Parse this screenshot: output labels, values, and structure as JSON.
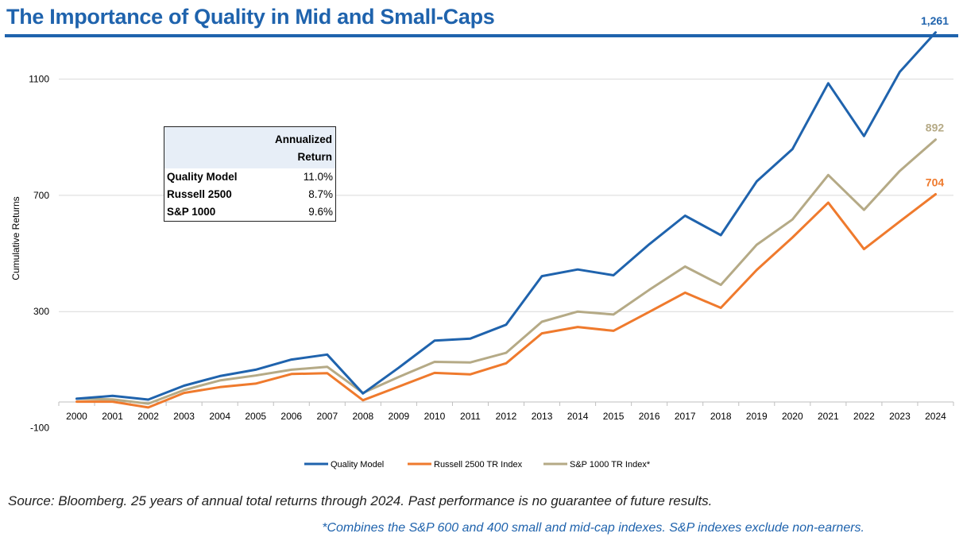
{
  "page": {
    "title": "The Importance of Quality in Mid and Small-Caps",
    "source": "Source: Bloomberg. 25 years of annual total returns through 2024. Past performance is no guarantee of future results.",
    "footnote": "*Combines the S&P 600 and 400 small and mid-cap indexes. S&P indexes exclude non-earners."
  },
  "returns_table": {
    "header_line1": "Annualized",
    "header_line2": "Return",
    "rows": [
      {
        "label": "Quality Model",
        "value": "11.0%"
      },
      {
        "label": "Russell 2500",
        "value": "8.7%"
      },
      {
        "label": "S&P 1000",
        "value": "9.6%"
      }
    ]
  },
  "chart_data": {
    "type": "line",
    "title": "",
    "xlabel": "",
    "ylabel": "Cumulative Returns",
    "ylim": [
      -100,
      1300
    ],
    "yticks": [
      -100,
      300,
      700,
      1100
    ],
    "grid": true,
    "legend_position": "bottom",
    "x": [
      "2000",
      "2001",
      "2002",
      "2003",
      "2004",
      "2005",
      "2006",
      "2007",
      "2008",
      "2009",
      "2010",
      "2011",
      "2012",
      "2013",
      "2014",
      "2015",
      "2016",
      "2017",
      "2018",
      "2019",
      "2020",
      "2021",
      "2022",
      "2023",
      "2024"
    ],
    "series": [
      {
        "name": "Quality Model",
        "color": "#1f63ad",
        "end_label": "1,261",
        "values": [
          0,
          10,
          -3,
          45,
          78,
          100,
          135,
          152,
          18,
          107,
          200,
          207,
          255,
          422,
          445,
          425,
          532,
          630,
          563,
          748,
          859,
          1086,
          904,
          1125,
          1261
        ]
      },
      {
        "name": "Russell 2500 TR Index",
        "color": "#ef7a2d",
        "end_label": "704",
        "values": [
          -10,
          -10,
          -30,
          20,
          40,
          52,
          85,
          88,
          -5,
          42,
          89,
          84,
          122,
          225,
          247,
          234,
          299,
          365,
          313,
          443,
          555,
          675,
          515,
          610,
          704
        ]
      },
      {
        "name": "S&P 1000 TR Index*",
        "color": "#b5aa86",
        "end_label": "892",
        "values": [
          0,
          -2,
          -17,
          30,
          63,
          80,
          100,
          110,
          20,
          75,
          127,
          125,
          158,
          265,
          300,
          290,
          375,
          455,
          392,
          530,
          617,
          770,
          650,
          784,
          892
        ]
      }
    ]
  }
}
